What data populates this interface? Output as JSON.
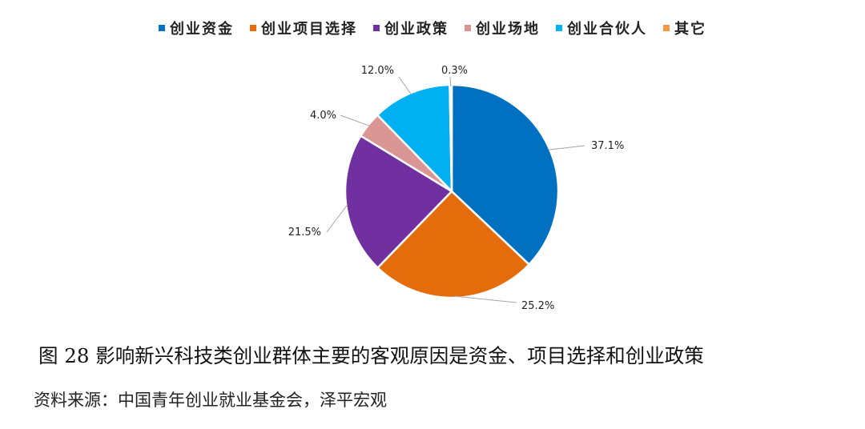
{
  "chart_data": {
    "type": "pie",
    "title": "",
    "legend_position": "top",
    "categories": [
      "创业资金",
      "创业项目选择",
      "创业政策",
      "创业场地",
      "创业合伙人",
      "其它"
    ],
    "values": [
      37.1,
      25.2,
      21.5,
      4.0,
      12.0,
      0.3
    ],
    "data_labels": [
      "37.1%",
      "25.2%",
      "21.5%",
      "4.0%",
      "12.0%",
      "0.3%"
    ],
    "colors": [
      "#0070C0",
      "#E46C0A",
      "#7030A0",
      "#D99694",
      "#00B0F0",
      "#F79646"
    ],
    "unit": "%"
  },
  "caption": "图 28 影响新兴科技类创业群体主要的客观原因是资金、项目选择和创业政策",
  "source": "资料来源：中国青年创业就业基金会，泽平宏观"
}
